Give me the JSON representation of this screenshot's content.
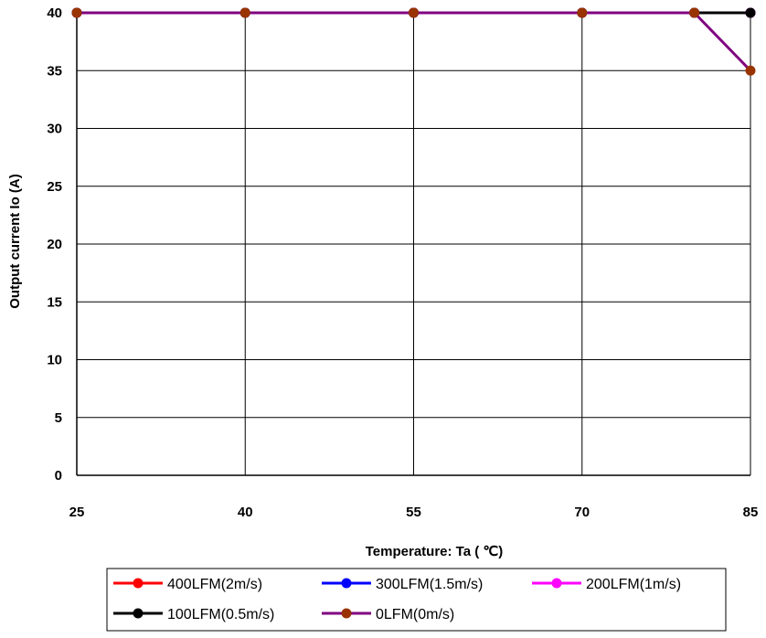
{
  "chart_data": {
    "type": "line",
    "xlabel": "Temperature: Ta ( ℃)",
    "ylabel": "Output current Io (A)",
    "x_ticks": [
      "25",
      "40",
      "55",
      "70",
      "85"
    ],
    "y_ticks": [
      "0",
      "5",
      "10",
      "15",
      "20",
      "25",
      "30",
      "35",
      "40"
    ],
    "xlim": [
      25,
      85
    ],
    "ylim": [
      0,
      40
    ],
    "grid": true,
    "legend_position": "bottom",
    "series": [
      {
        "name": "400LFM(2m/s)",
        "color": "#ff0000",
        "marker_color": "#ff0000",
        "x": [
          25,
          40,
          55,
          70,
          80,
          85
        ],
        "y": [
          40,
          40,
          40,
          40,
          40,
          40
        ]
      },
      {
        "name": "300LFM(1.5m/s)",
        "color": "#0000ff",
        "marker_color": "#0000ff",
        "x": [
          25,
          40,
          55,
          70,
          80,
          85
        ],
        "y": [
          40,
          40,
          40,
          40,
          40,
          40
        ]
      },
      {
        "name": "200LFM(1m/s)",
        "color": "#ff00ff",
        "marker_color": "#ff00ff",
        "x": [
          25,
          40,
          55,
          70,
          80,
          85
        ],
        "y": [
          40,
          40,
          40,
          40,
          40,
          40
        ]
      },
      {
        "name": "100LFM(0.5m/s)",
        "color": "#000000",
        "marker_color": "#000000",
        "x": [
          25,
          40,
          55,
          70,
          80,
          85
        ],
        "y": [
          40,
          40,
          40,
          40,
          40,
          40
        ]
      },
      {
        "name": "0LFM(0m/s)",
        "color": "#800080",
        "marker_color": "#993300",
        "x": [
          25,
          40,
          55,
          70,
          80,
          85
        ],
        "y": [
          40,
          40,
          40,
          40,
          40,
          35
        ]
      }
    ]
  }
}
